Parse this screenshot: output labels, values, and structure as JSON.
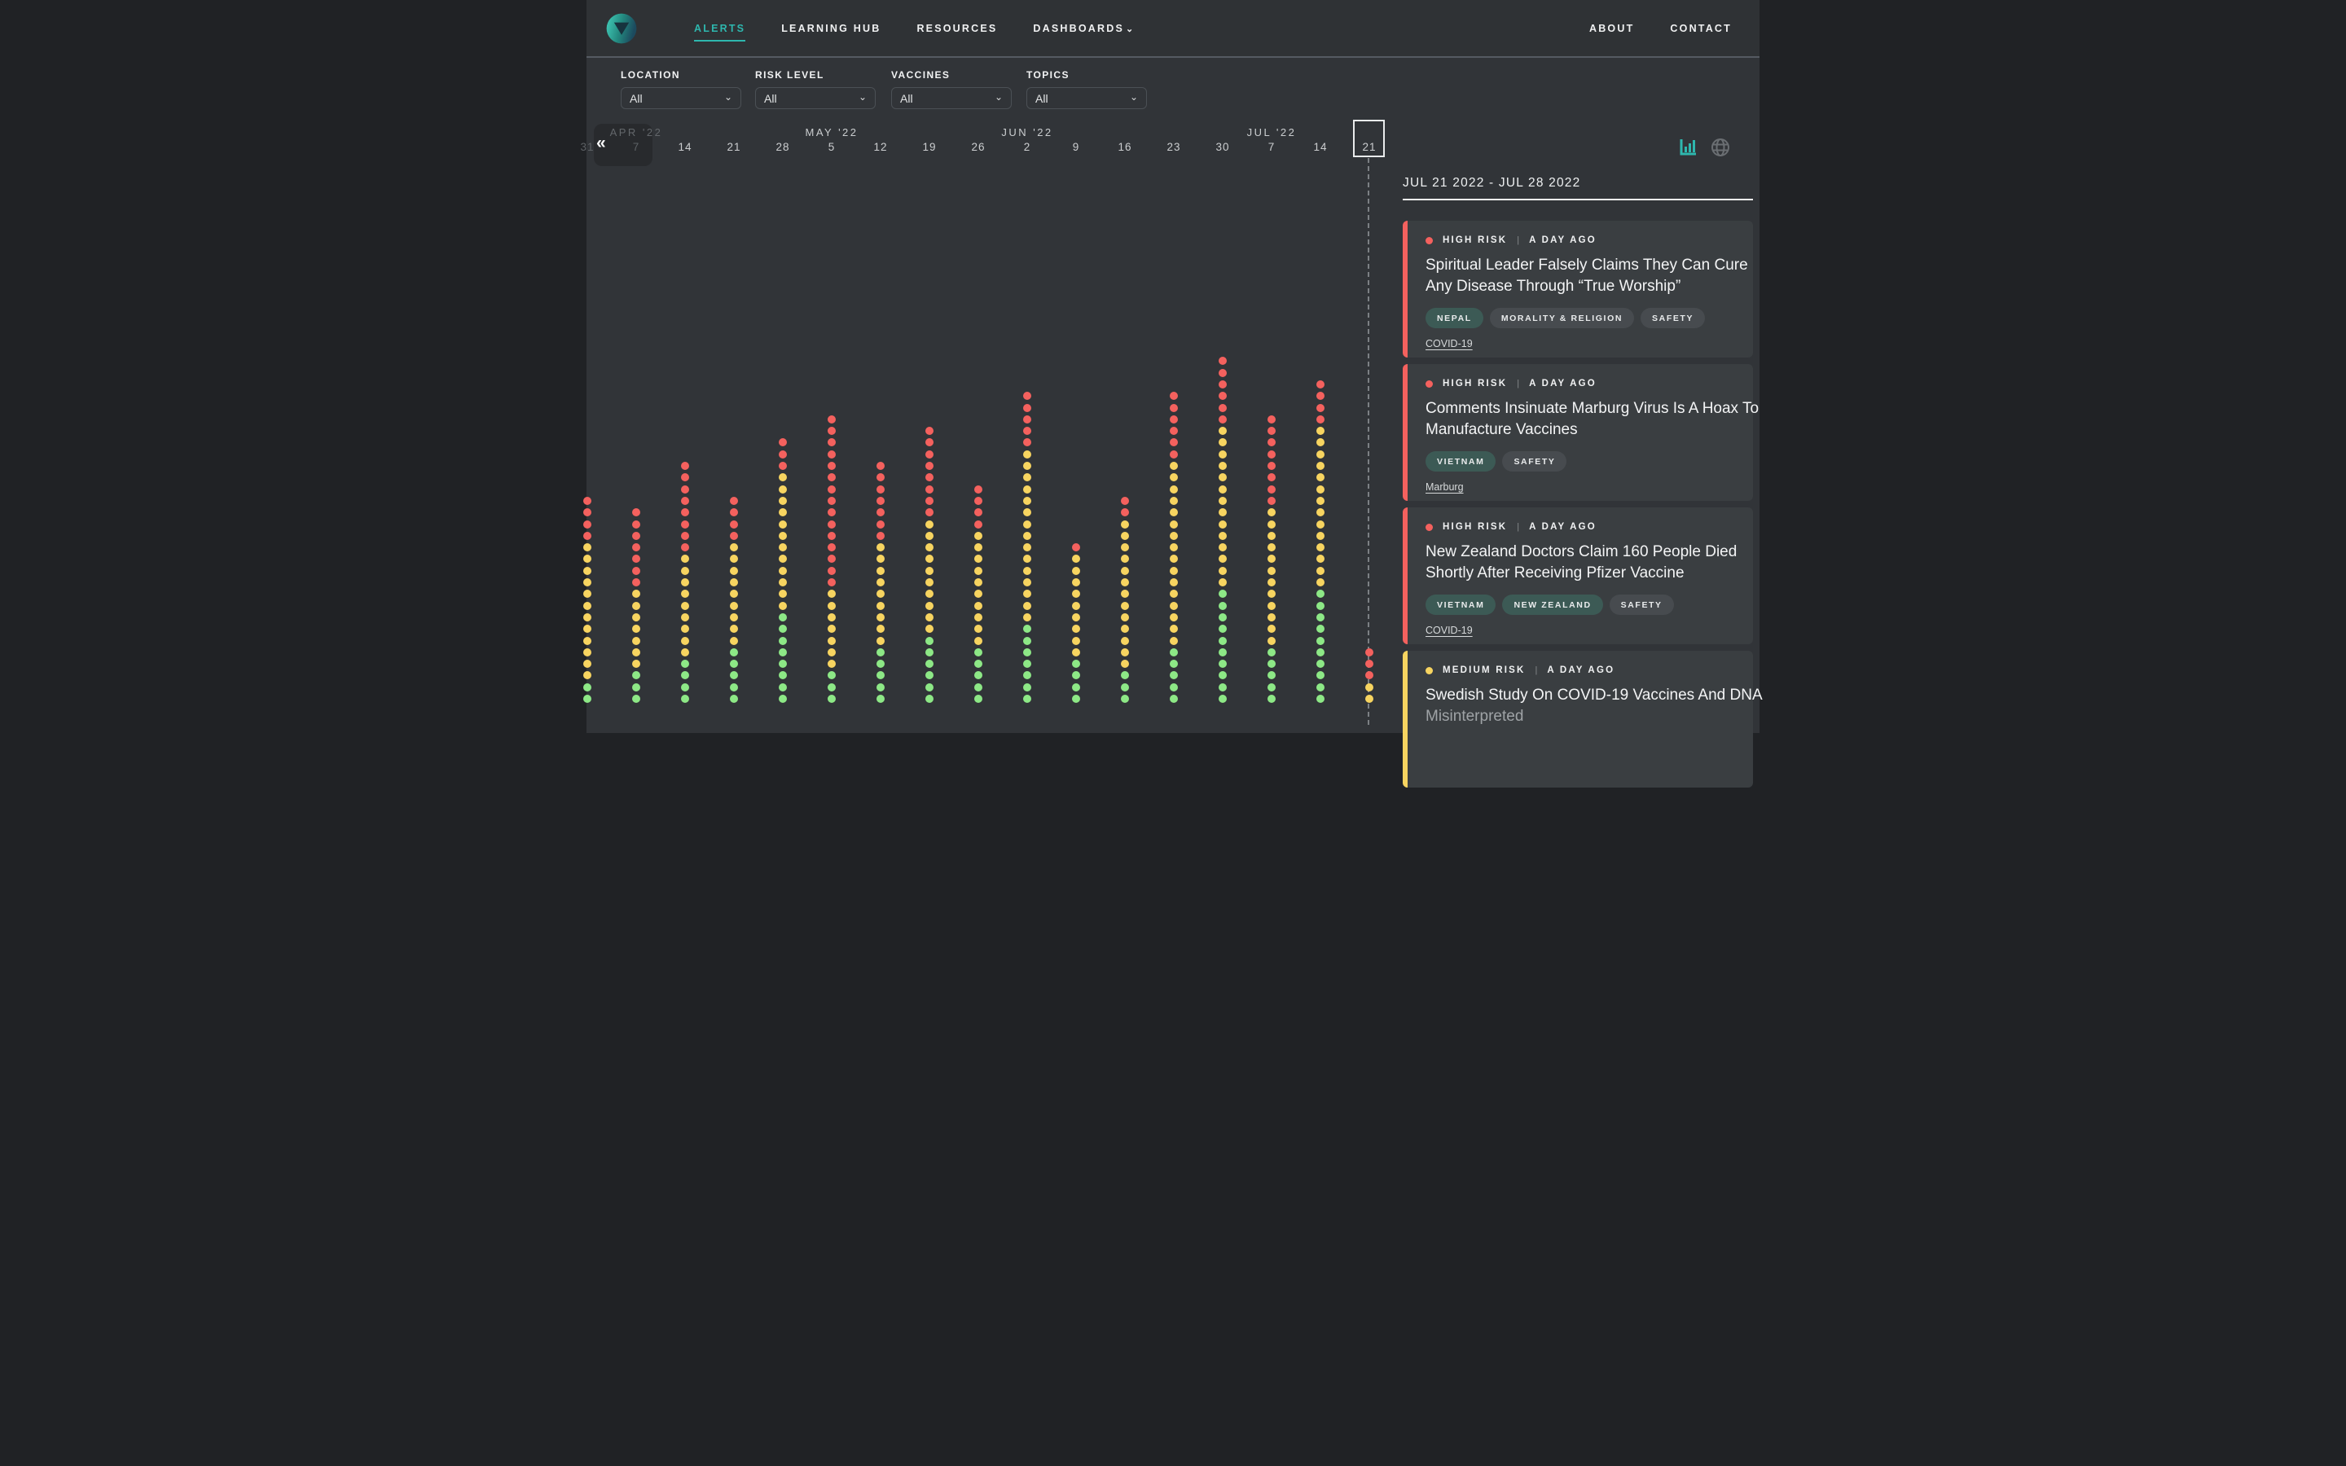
{
  "header": {
    "nav": [
      {
        "label": "Alerts",
        "active": true
      },
      {
        "label": "Learning Hub",
        "active": false
      },
      {
        "label": "Resources",
        "active": false
      },
      {
        "label": "Dashboards",
        "active": false,
        "has_chevron": true
      }
    ],
    "nav_right": [
      {
        "label": "About"
      },
      {
        "label": "Contact"
      }
    ]
  },
  "filters": [
    {
      "label": "Location",
      "value": "All"
    },
    {
      "label": "Risk Level",
      "value": "All"
    },
    {
      "label": "Vaccines",
      "value": "All"
    },
    {
      "label": "Topics",
      "value": "All"
    }
  ],
  "view_icons": [
    {
      "name": "bar-chart-view",
      "active": true,
      "color": "#2eb7ae"
    },
    {
      "name": "globe-view",
      "active": false,
      "color": "#6a6e72"
    }
  ],
  "timeline": {
    "prev_button": "«",
    "months": [
      {
        "label": "APR '22",
        "tick": 1,
        "dimmed": true
      },
      {
        "label": "MAY '22",
        "tick": 5,
        "dimmed": false
      },
      {
        "label": "JUN '22",
        "tick": 9,
        "dimmed": false
      },
      {
        "label": "JUL '22",
        "tick": 14,
        "dimmed": false
      }
    ]
  },
  "chart_data": {
    "type": "dot-column",
    "description": "Weekly vaccine-misinformation alert counts; one dot = one alert, stacked by risk level (red = high risk on top, yellow = medium, green = low at bottom)",
    "legend": {
      "high": "#f4615e",
      "medium": "#f7d460",
      "low": "#8de886"
    },
    "x_axis": "week starting date",
    "selected_week": "Jul 21 2022",
    "columns": [
      {
        "date": "Mar 31",
        "label": "31",
        "high": 4,
        "medium": 12,
        "low": 2,
        "dimmed": true,
        "partial": true
      },
      {
        "date": "Apr 7",
        "label": "7",
        "high": 7,
        "medium": 7,
        "low": 3,
        "dimmed": true
      },
      {
        "date": "Apr 14",
        "label": "14",
        "high": 8,
        "medium": 9,
        "low": 4
      },
      {
        "date": "Apr 21",
        "label": "21",
        "high": 4,
        "medium": 9,
        "low": 5
      },
      {
        "date": "Apr 28",
        "label": "28",
        "high": 3,
        "medium": 12,
        "low": 8
      },
      {
        "date": "May 5",
        "label": "5",
        "high": 15,
        "medium": 7,
        "low": 3
      },
      {
        "date": "May 12",
        "label": "12",
        "high": 7,
        "medium": 9,
        "low": 5
      },
      {
        "date": "May 19",
        "label": "19",
        "high": 8,
        "medium": 10,
        "low": 6
      },
      {
        "date": "May 26",
        "label": "26",
        "high": 4,
        "medium": 10,
        "low": 5
      },
      {
        "date": "Jun 2",
        "label": "2",
        "high": 5,
        "medium": 15,
        "low": 7
      },
      {
        "date": "Jun 9",
        "label": "9",
        "high": 1,
        "medium": 9,
        "low": 4
      },
      {
        "date": "Jun 16",
        "label": "16",
        "high": 2,
        "medium": 13,
        "low": 3
      },
      {
        "date": "Jun 23",
        "label": "23",
        "high": 6,
        "medium": 16,
        "low": 5
      },
      {
        "date": "Jun 30",
        "label": "30",
        "high": 6,
        "medium": 14,
        "low": 10
      },
      {
        "date": "Jul 7",
        "label": "7",
        "high": 8,
        "medium": 12,
        "low": 5
      },
      {
        "date": "Jul 14",
        "label": "14",
        "high": 4,
        "medium": 14,
        "low": 10
      },
      {
        "date": "Jul 21",
        "label": "21",
        "high": 3,
        "medium": 2,
        "low": 0,
        "selected": true
      }
    ]
  },
  "panel": {
    "date_range": "JUL 21 2022 - JUL 28 2022",
    "cards": [
      {
        "risk_level": "high",
        "risk_label": "High Risk",
        "separator": "|",
        "time": "A Day Ago",
        "title_lines": [
          "Spiritual Leader Falsely Claims They Can Cure",
          "Any Disease Through “True Worship”"
        ],
        "tags": [
          {
            "label": "Nepal",
            "type": "location"
          },
          {
            "label": "Morality & Religion",
            "type": "topic"
          },
          {
            "label": "Safety",
            "type": "topic"
          }
        ],
        "link": "COVID-19"
      },
      {
        "risk_level": "high",
        "risk_label": "High Risk",
        "separator": "|",
        "time": "A Day Ago",
        "title_lines": [
          "Comments Insinuate Marburg Virus Is A Hoax To",
          "Manufacture Vaccines"
        ],
        "tags": [
          {
            "label": "Vietnam",
            "type": "location"
          },
          {
            "label": "Safety",
            "type": "topic"
          }
        ],
        "link": "Marburg"
      },
      {
        "risk_level": "high",
        "risk_label": "High Risk",
        "separator": "|",
        "time": "A Day Ago",
        "title_lines": [
          "New Zealand Doctors Claim 160 People Died",
          "Shortly After Receiving Pfizer Vaccine"
        ],
        "tags": [
          {
            "label": "Vietnam",
            "type": "location"
          },
          {
            "label": "New Zealand",
            "type": "location"
          },
          {
            "label": "Safety",
            "type": "topic"
          }
        ],
        "link": "COVID-19"
      },
      {
        "risk_level": "medium",
        "risk_label": "Medium Risk",
        "separator": "|",
        "time": "A Day Ago",
        "title_lines": [
          "Swedish Study On COVID-19 Vaccines And DNA",
          "Misinterpreted"
        ],
        "dim_second_line": true,
        "tags": [],
        "link": null
      }
    ]
  },
  "colors": {
    "background": "#313438",
    "header_background": "#2f3235",
    "card_background": "#3a3e41",
    "accent_teal": "#2eb7ae",
    "risk_high": "#f4615e",
    "risk_medium": "#f7d460",
    "risk_low": "#8de886",
    "tag_location": "#3c5a55",
    "tag_topic": "#474b4f"
  }
}
